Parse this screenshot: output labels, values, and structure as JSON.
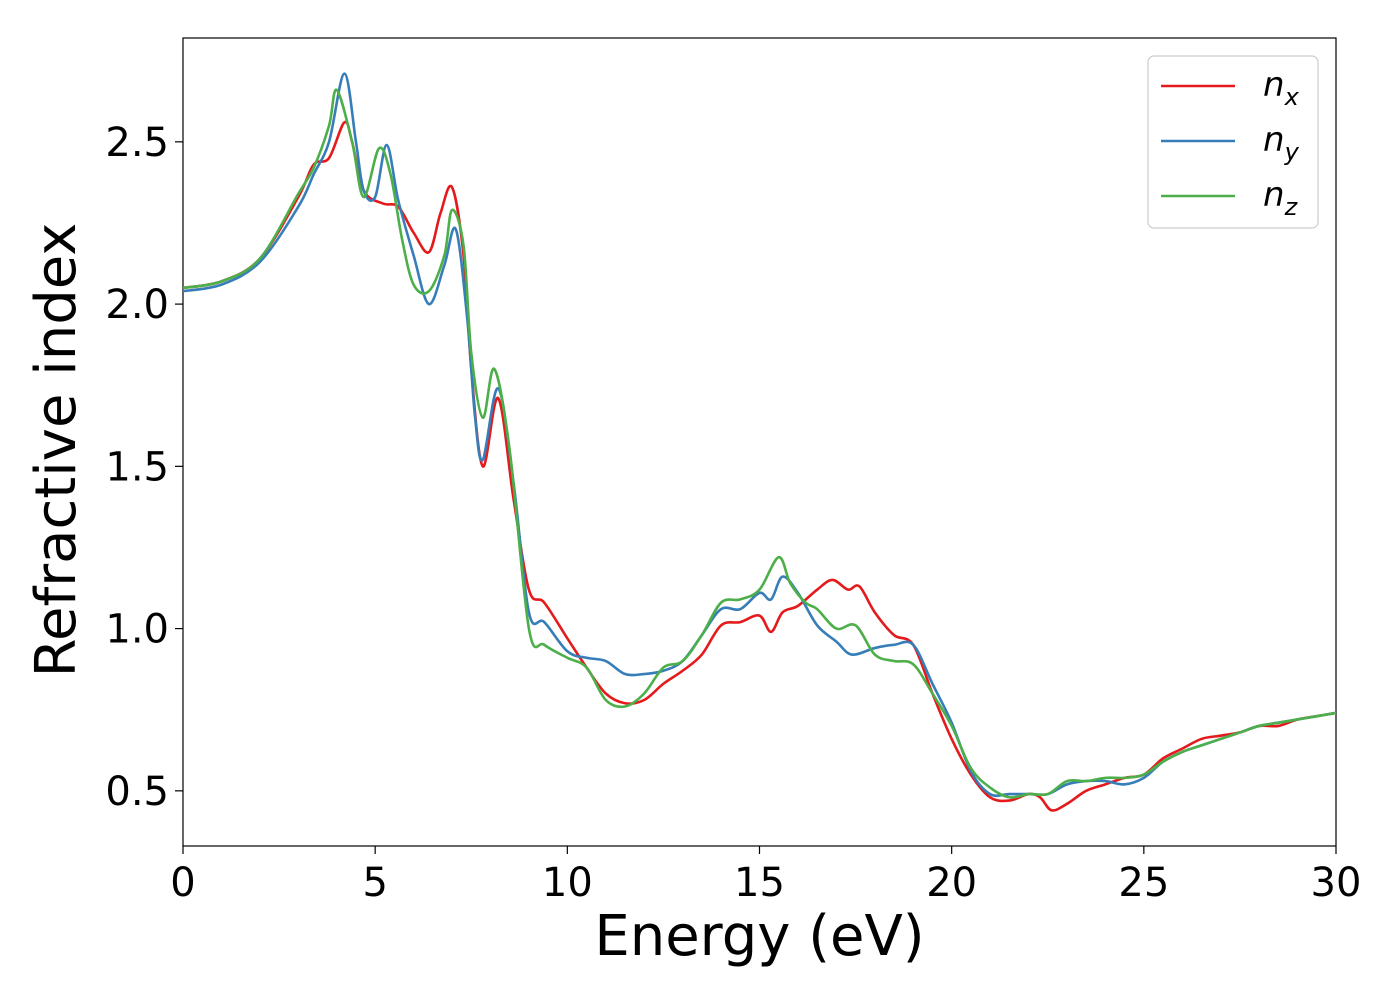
{
  "chart_data": {
    "type": "line",
    "title": "",
    "xlabel": "Energy (eV)",
    "ylabel": "Refractive index",
    "xlim": [
      0,
      30
    ],
    "ylim": [
      0.33,
      2.82
    ],
    "x_ticks": [
      0,
      5,
      10,
      15,
      20,
      25,
      30
    ],
    "y_ticks": [
      0.5,
      1.0,
      1.5,
      2.0,
      2.5
    ],
    "x_tick_labels": [
      "0",
      "5",
      "10",
      "15",
      "20",
      "25",
      "30"
    ],
    "y_tick_labels": [
      "0.5",
      "1.0",
      "1.5",
      "2.0",
      "2.5"
    ],
    "grid": false,
    "legend_position": "top-right",
    "series": [
      {
        "name": "n_x",
        "label_base": "n",
        "label_sub": "x",
        "color": "#e41a1c",
        "points": [
          [
            0,
            2.05
          ],
          [
            1,
            2.07
          ],
          [
            2,
            2.14
          ],
          [
            3,
            2.33
          ],
          [
            3.4,
            2.43
          ],
          [
            3.8,
            2.45
          ],
          [
            4.2,
            2.56
          ],
          [
            4.4,
            2.5
          ],
          [
            4.7,
            2.35
          ],
          [
            5.2,
            2.31
          ],
          [
            5.6,
            2.3
          ],
          [
            6,
            2.22
          ],
          [
            6.4,
            2.16
          ],
          [
            6.7,
            2.28
          ],
          [
            7.0,
            2.36
          ],
          [
            7.3,
            2.15
          ],
          [
            7.5,
            1.8
          ],
          [
            7.8,
            1.5
          ],
          [
            8.2,
            1.71
          ],
          [
            8.6,
            1.4
          ],
          [
            9.0,
            1.12
          ],
          [
            9.4,
            1.08
          ],
          [
            10,
            0.97
          ],
          [
            10.5,
            0.88
          ],
          [
            11,
            0.8
          ],
          [
            11.5,
            0.77
          ],
          [
            12,
            0.78
          ],
          [
            12.5,
            0.83
          ],
          [
            13,
            0.87
          ],
          [
            13.5,
            0.92
          ],
          [
            14,
            1.01
          ],
          [
            14.5,
            1.02
          ],
          [
            15,
            1.04
          ],
          [
            15.3,
            0.99
          ],
          [
            15.6,
            1.05
          ],
          [
            16,
            1.07
          ],
          [
            16.5,
            1.12
          ],
          [
            16.9,
            1.15
          ],
          [
            17.3,
            1.12
          ],
          [
            17.6,
            1.13
          ],
          [
            18,
            1.05
          ],
          [
            18.5,
            0.98
          ],
          [
            19,
            0.95
          ],
          [
            19.5,
            0.8
          ],
          [
            20,
            0.66
          ],
          [
            20.5,
            0.55
          ],
          [
            21,
            0.48
          ],
          [
            21.5,
            0.47
          ],
          [
            22,
            0.49
          ],
          [
            22.3,
            0.48
          ],
          [
            22.6,
            0.44
          ],
          [
            23,
            0.46
          ],
          [
            23.5,
            0.5
          ],
          [
            24,
            0.52
          ],
          [
            24.5,
            0.54
          ],
          [
            25,
            0.55
          ],
          [
            25.5,
            0.6
          ],
          [
            26,
            0.63
          ],
          [
            26.5,
            0.66
          ],
          [
            27,
            0.67
          ],
          [
            27.5,
            0.68
          ],
          [
            28,
            0.7
          ],
          [
            28.5,
            0.7
          ],
          [
            29,
            0.72
          ],
          [
            29.5,
            0.73
          ],
          [
            30,
            0.74
          ]
        ]
      },
      {
        "name": "n_y",
        "label_base": "n",
        "label_sub": "y",
        "color": "#377eb8",
        "points": [
          [
            0,
            2.04
          ],
          [
            1,
            2.06
          ],
          [
            2,
            2.13
          ],
          [
            3,
            2.3
          ],
          [
            3.4,
            2.4
          ],
          [
            3.8,
            2.5
          ],
          [
            4.2,
            2.71
          ],
          [
            4.5,
            2.5
          ],
          [
            4.7,
            2.35
          ],
          [
            5.0,
            2.33
          ],
          [
            5.3,
            2.49
          ],
          [
            5.6,
            2.32
          ],
          [
            6.0,
            2.15
          ],
          [
            6.4,
            2.0
          ],
          [
            6.8,
            2.12
          ],
          [
            7.1,
            2.23
          ],
          [
            7.4,
            1.95
          ],
          [
            7.6,
            1.65
          ],
          [
            7.8,
            1.52
          ],
          [
            8.2,
            1.74
          ],
          [
            8.6,
            1.45
          ],
          [
            9.0,
            1.05
          ],
          [
            9.4,
            1.02
          ],
          [
            10,
            0.93
          ],
          [
            10.5,
            0.91
          ],
          [
            11,
            0.9
          ],
          [
            11.5,
            0.86
          ],
          [
            12,
            0.86
          ],
          [
            12.5,
            0.87
          ],
          [
            13,
            0.9
          ],
          [
            13.5,
            0.98
          ],
          [
            14,
            1.06
          ],
          [
            14.5,
            1.06
          ],
          [
            15,
            1.11
          ],
          [
            15.3,
            1.09
          ],
          [
            15.6,
            1.16
          ],
          [
            16,
            1.11
          ],
          [
            16.5,
            1.01
          ],
          [
            17,
            0.96
          ],
          [
            17.4,
            0.92
          ],
          [
            18,
            0.94
          ],
          [
            18.5,
            0.95
          ],
          [
            19,
            0.95
          ],
          [
            19.5,
            0.83
          ],
          [
            20,
            0.71
          ],
          [
            20.5,
            0.56
          ],
          [
            21,
            0.49
          ],
          [
            21.5,
            0.49
          ],
          [
            22,
            0.49
          ],
          [
            22.5,
            0.49
          ],
          [
            23,
            0.52
          ],
          [
            23.5,
            0.53
          ],
          [
            24,
            0.53
          ],
          [
            24.5,
            0.52
          ],
          [
            25,
            0.54
          ],
          [
            25.5,
            0.59
          ],
          [
            26,
            0.62
          ],
          [
            26.5,
            0.64
          ],
          [
            27,
            0.66
          ],
          [
            27.5,
            0.68
          ],
          [
            28,
            0.7
          ],
          [
            28.5,
            0.71
          ],
          [
            29,
            0.72
          ],
          [
            29.5,
            0.73
          ],
          [
            30,
            0.74
          ]
        ]
      },
      {
        "name": "n_z",
        "label_base": "n",
        "label_sub": "z",
        "color": "#4daf4a",
        "points": [
          [
            0,
            2.05
          ],
          [
            1,
            2.07
          ],
          [
            2,
            2.14
          ],
          [
            3,
            2.34
          ],
          [
            3.4,
            2.42
          ],
          [
            3.8,
            2.55
          ],
          [
            4.0,
            2.66
          ],
          [
            4.4,
            2.5
          ],
          [
            4.7,
            2.33
          ],
          [
            5.1,
            2.48
          ],
          [
            5.4,
            2.4
          ],
          [
            5.7,
            2.2
          ],
          [
            6.0,
            2.06
          ],
          [
            6.4,
            2.04
          ],
          [
            6.8,
            2.15
          ],
          [
            7.0,
            2.29
          ],
          [
            7.3,
            2.18
          ],
          [
            7.5,
            1.85
          ],
          [
            7.8,
            1.65
          ],
          [
            8.1,
            1.8
          ],
          [
            8.5,
            1.55
          ],
          [
            9.0,
            1.0
          ],
          [
            9.4,
            0.95
          ],
          [
            10,
            0.91
          ],
          [
            10.5,
            0.88
          ],
          [
            11,
            0.78
          ],
          [
            11.5,
            0.76
          ],
          [
            12,
            0.8
          ],
          [
            12.5,
            0.88
          ],
          [
            13,
            0.9
          ],
          [
            13.5,
            0.98
          ],
          [
            14,
            1.08
          ],
          [
            14.5,
            1.09
          ],
          [
            15,
            1.12
          ],
          [
            15.5,
            1.22
          ],
          [
            15.8,
            1.14
          ],
          [
            16.2,
            1.08
          ],
          [
            16.5,
            1.06
          ],
          [
            17,
            1.0
          ],
          [
            17.5,
            1.01
          ],
          [
            18,
            0.92
          ],
          [
            18.5,
            0.9
          ],
          [
            19,
            0.89
          ],
          [
            19.5,
            0.8
          ],
          [
            20,
            0.7
          ],
          [
            20.5,
            0.57
          ],
          [
            21,
            0.51
          ],
          [
            21.5,
            0.48
          ],
          [
            22,
            0.49
          ],
          [
            22.5,
            0.49
          ],
          [
            23,
            0.53
          ],
          [
            23.5,
            0.53
          ],
          [
            24,
            0.54
          ],
          [
            24.5,
            0.54
          ],
          [
            25,
            0.55
          ],
          [
            25.5,
            0.59
          ],
          [
            26,
            0.62
          ],
          [
            26.5,
            0.64
          ],
          [
            27,
            0.66
          ],
          [
            27.5,
            0.68
          ],
          [
            28,
            0.7
          ],
          [
            28.5,
            0.71
          ],
          [
            29,
            0.72
          ],
          [
            29.5,
            0.73
          ],
          [
            30,
            0.74
          ]
        ]
      }
    ]
  }
}
